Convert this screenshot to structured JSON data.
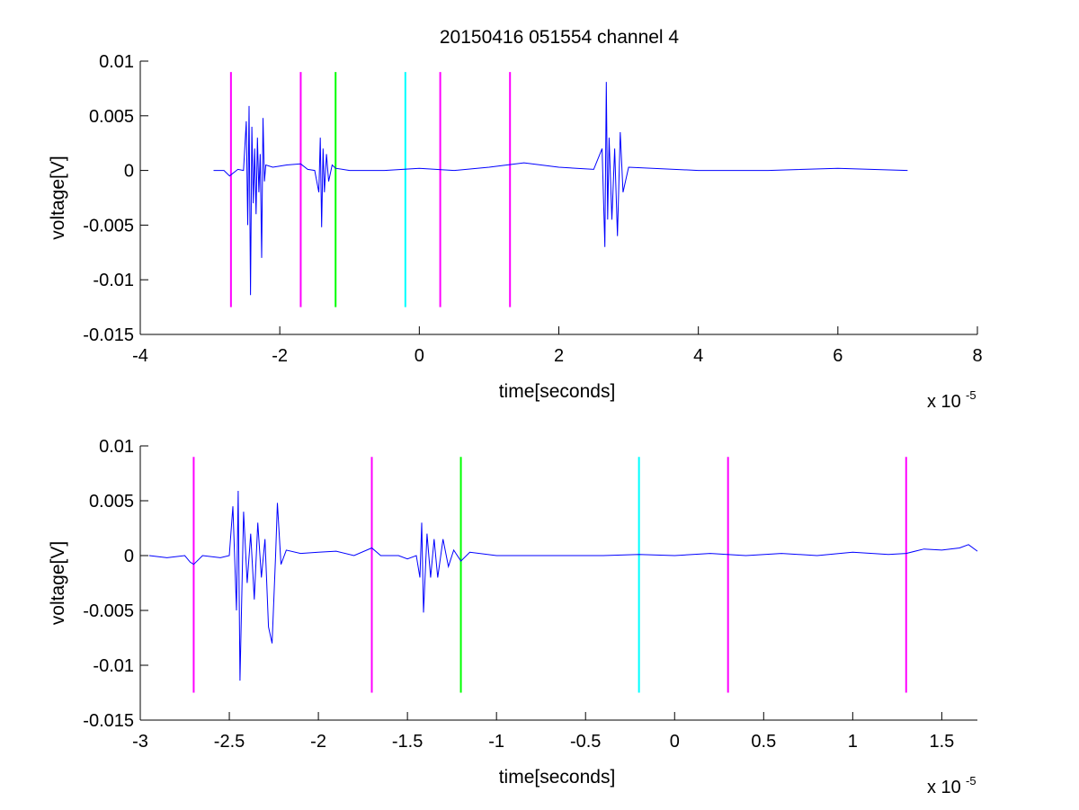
{
  "figure": {
    "title": "20150416 051554 channel 4"
  },
  "chart_data": [
    {
      "type": "line",
      "title": "20150416 051554 channel 4",
      "xlabel": "time[seconds]",
      "ylabel": "voltage[V]",
      "x_multiplier": {
        "base": "x 10",
        "exponent": "-5"
      },
      "xlim": [
        -4,
        8
      ],
      "ylim": [
        -0.015,
        0.01
      ],
      "xticks": [
        -4,
        -2,
        0,
        2,
        4,
        6,
        8
      ],
      "xtick_labels": [
        "-4",
        "-2",
        "0",
        "2",
        "4",
        "6",
        "8"
      ],
      "yticks": [
        0.01,
        0.005,
        0,
        -0.005,
        -0.01,
        -0.015
      ],
      "ytick_labels": [
        "0.01",
        "0.005",
        "0",
        "-0.005",
        "-0.01",
        "-0.015"
      ],
      "grid": false,
      "series": [
        {
          "color": "#0000ff",
          "points": [
            [
              -2.95,
              0.0
            ],
            [
              -2.8,
              0.0
            ],
            [
              -2.72,
              -0.0005
            ],
            [
              -2.6,
              0.0001
            ],
            [
              -2.52,
              0.0
            ],
            [
              -2.48,
              0.0045
            ],
            [
              -2.46,
              -0.005
            ],
            [
              -2.44,
              0.0059
            ],
            [
              -2.42,
              -0.0114
            ],
            [
              -2.4,
              0.004
            ],
            [
              -2.38,
              -0.003
            ],
            [
              -2.36,
              0.002
            ],
            [
              -2.34,
              -0.004
            ],
            [
              -2.32,
              0.003
            ],
            [
              -2.3,
              -0.002
            ],
            [
              -2.28,
              0.0015
            ],
            [
              -2.26,
              -0.008
            ],
            [
              -2.24,
              0.0048
            ],
            [
              -2.22,
              -0.001
            ],
            [
              -2.2,
              0.0005
            ],
            [
              -2.1,
              0.0003
            ],
            [
              -2.0,
              0.0004
            ],
            [
              -1.9,
              0.0005
            ],
            [
              -1.7,
              0.0006
            ],
            [
              -1.6,
              0.0001
            ],
            [
              -1.5,
              0.0
            ],
            [
              -1.44,
              -0.002
            ],
            [
              -1.42,
              0.003
            ],
            [
              -1.4,
              -0.0052
            ],
            [
              -1.38,
              0.002
            ],
            [
              -1.36,
              -0.002
            ],
            [
              -1.33,
              0.0015
            ],
            [
              -1.3,
              -0.001
            ],
            [
              -1.25,
              0.0005
            ],
            [
              -1.2,
              0.0002
            ],
            [
              -1.0,
              0.0
            ],
            [
              -0.5,
              0.0
            ],
            [
              0.0,
              0.0002
            ],
            [
              0.5,
              0.0
            ],
            [
              1.0,
              0.0003
            ],
            [
              1.5,
              0.0007
            ],
            [
              2.0,
              0.0003
            ],
            [
              2.5,
              0.0001
            ],
            [
              2.62,
              0.002
            ],
            [
              2.66,
              -0.007
            ],
            [
              2.68,
              0.0081
            ],
            [
              2.7,
              -0.0045
            ],
            [
              2.72,
              0.003
            ],
            [
              2.76,
              -0.0045
            ],
            [
              2.8,
              0.002
            ],
            [
              2.84,
              -0.006
            ],
            [
              2.88,
              0.0035
            ],
            [
              2.92,
              -0.002
            ],
            [
              3.0,
              0.0003
            ],
            [
              4.0,
              0.0
            ],
            [
              5.0,
              0.0
            ],
            [
              6.0,
              0.0002
            ],
            [
              7.0,
              0.0
            ]
          ]
        }
      ],
      "vertical_markers": [
        {
          "x": -2.7,
          "color": "#ff00ff"
        },
        {
          "x": -1.7,
          "color": "#ff00ff"
        },
        {
          "x": -1.2,
          "color": "#00ff00"
        },
        {
          "x": -0.2,
          "color": "#00ffff"
        },
        {
          "x": 0.3,
          "color": "#ff00ff"
        },
        {
          "x": 1.3,
          "color": "#ff00ff"
        }
      ],
      "marker_range": [
        -0.0125,
        0.009
      ]
    },
    {
      "type": "line",
      "title": "",
      "xlabel": "time[seconds]",
      "ylabel": "voltage[V]",
      "x_multiplier": {
        "base": "x 10",
        "exponent": "-5"
      },
      "xlim": [
        -3.0,
        1.7
      ],
      "ylim": [
        -0.015,
        0.01
      ],
      "xticks": [
        -3,
        -2.5,
        -2,
        -1.5,
        -1,
        -0.5,
        0,
        0.5,
        1,
        1.5
      ],
      "xtick_labels": [
        "-3",
        "-2.5",
        "-2",
        "-1.5",
        "-1",
        "-0.5",
        "0",
        "0.5",
        "1",
        "1.5"
      ],
      "yticks": [
        0.01,
        0.005,
        0,
        -0.005,
        -0.01,
        -0.015
      ],
      "ytick_labels": [
        "0.01",
        "0.005",
        "0",
        "-0.005",
        "-0.01",
        "-0.015"
      ],
      "grid": false,
      "series": [
        {
          "color": "#0000ff",
          "points": [
            [
              -2.95,
              0.0
            ],
            [
              -2.85,
              -0.0002
            ],
            [
              -2.75,
              0.0
            ],
            [
              -2.72,
              -0.0006
            ],
            [
              -2.7,
              -0.0008
            ],
            [
              -2.65,
              0.0
            ],
            [
              -2.55,
              -0.0002
            ],
            [
              -2.5,
              0.0
            ],
            [
              -2.48,
              0.0045
            ],
            [
              -2.46,
              -0.005
            ],
            [
              -2.45,
              0.0059
            ],
            [
              -2.44,
              -0.0114
            ],
            [
              -2.42,
              0.004
            ],
            [
              -2.4,
              -0.0025
            ],
            [
              -2.38,
              0.002
            ],
            [
              -2.36,
              -0.004
            ],
            [
              -2.34,
              0.003
            ],
            [
              -2.32,
              -0.002
            ],
            [
              -2.3,
              0.0015
            ],
            [
              -2.28,
              -0.0065
            ],
            [
              -2.26,
              -0.008
            ],
            [
              -2.24,
              0.0
            ],
            [
              -2.23,
              0.0048
            ],
            [
              -2.21,
              -0.0008
            ],
            [
              -2.18,
              0.0005
            ],
            [
              -2.1,
              0.0002
            ],
            [
              -2.0,
              0.0003
            ],
            [
              -1.9,
              0.0004
            ],
            [
              -1.8,
              0.0
            ],
            [
              -1.7,
              0.0007
            ],
            [
              -1.65,
              0.0
            ],
            [
              -1.55,
              0.0
            ],
            [
              -1.5,
              -0.0003
            ],
            [
              -1.45,
              0.0
            ],
            [
              -1.43,
              -0.002
            ],
            [
              -1.42,
              0.003
            ],
            [
              -1.41,
              -0.0052
            ],
            [
              -1.39,
              0.002
            ],
            [
              -1.37,
              -0.002
            ],
            [
              -1.35,
              0.0015
            ],
            [
              -1.33,
              -0.002
            ],
            [
              -1.3,
              0.0015
            ],
            [
              -1.27,
              -0.001
            ],
            [
              -1.24,
              0.0005
            ],
            [
              -1.2,
              -0.0005
            ],
            [
              -1.15,
              0.0003
            ],
            [
              -1.0,
              0.0
            ],
            [
              -0.8,
              0.0
            ],
            [
              -0.6,
              0.0
            ],
            [
              -0.4,
              0.0
            ],
            [
              -0.2,
              0.0001
            ],
            [
              0.0,
              0.0
            ],
            [
              0.2,
              0.0002
            ],
            [
              0.4,
              0.0
            ],
            [
              0.6,
              0.0002
            ],
            [
              0.8,
              0.0
            ],
            [
              1.0,
              0.0003
            ],
            [
              1.2,
              0.0001
            ],
            [
              1.3,
              0.0002
            ],
            [
              1.4,
              0.0006
            ],
            [
              1.5,
              0.0005
            ],
            [
              1.6,
              0.0007
            ],
            [
              1.65,
              0.001
            ],
            [
              1.7,
              0.0004
            ]
          ]
        }
      ],
      "vertical_markers": [
        {
          "x": -2.7,
          "color": "#ff00ff"
        },
        {
          "x": -1.7,
          "color": "#ff00ff"
        },
        {
          "x": -1.2,
          "color": "#00ff00"
        },
        {
          "x": -0.2,
          "color": "#00ffff"
        },
        {
          "x": 0.3,
          "color": "#ff00ff"
        },
        {
          "x": 1.3,
          "color": "#ff00ff"
        }
      ],
      "marker_range": [
        -0.0125,
        0.009
      ]
    }
  ]
}
